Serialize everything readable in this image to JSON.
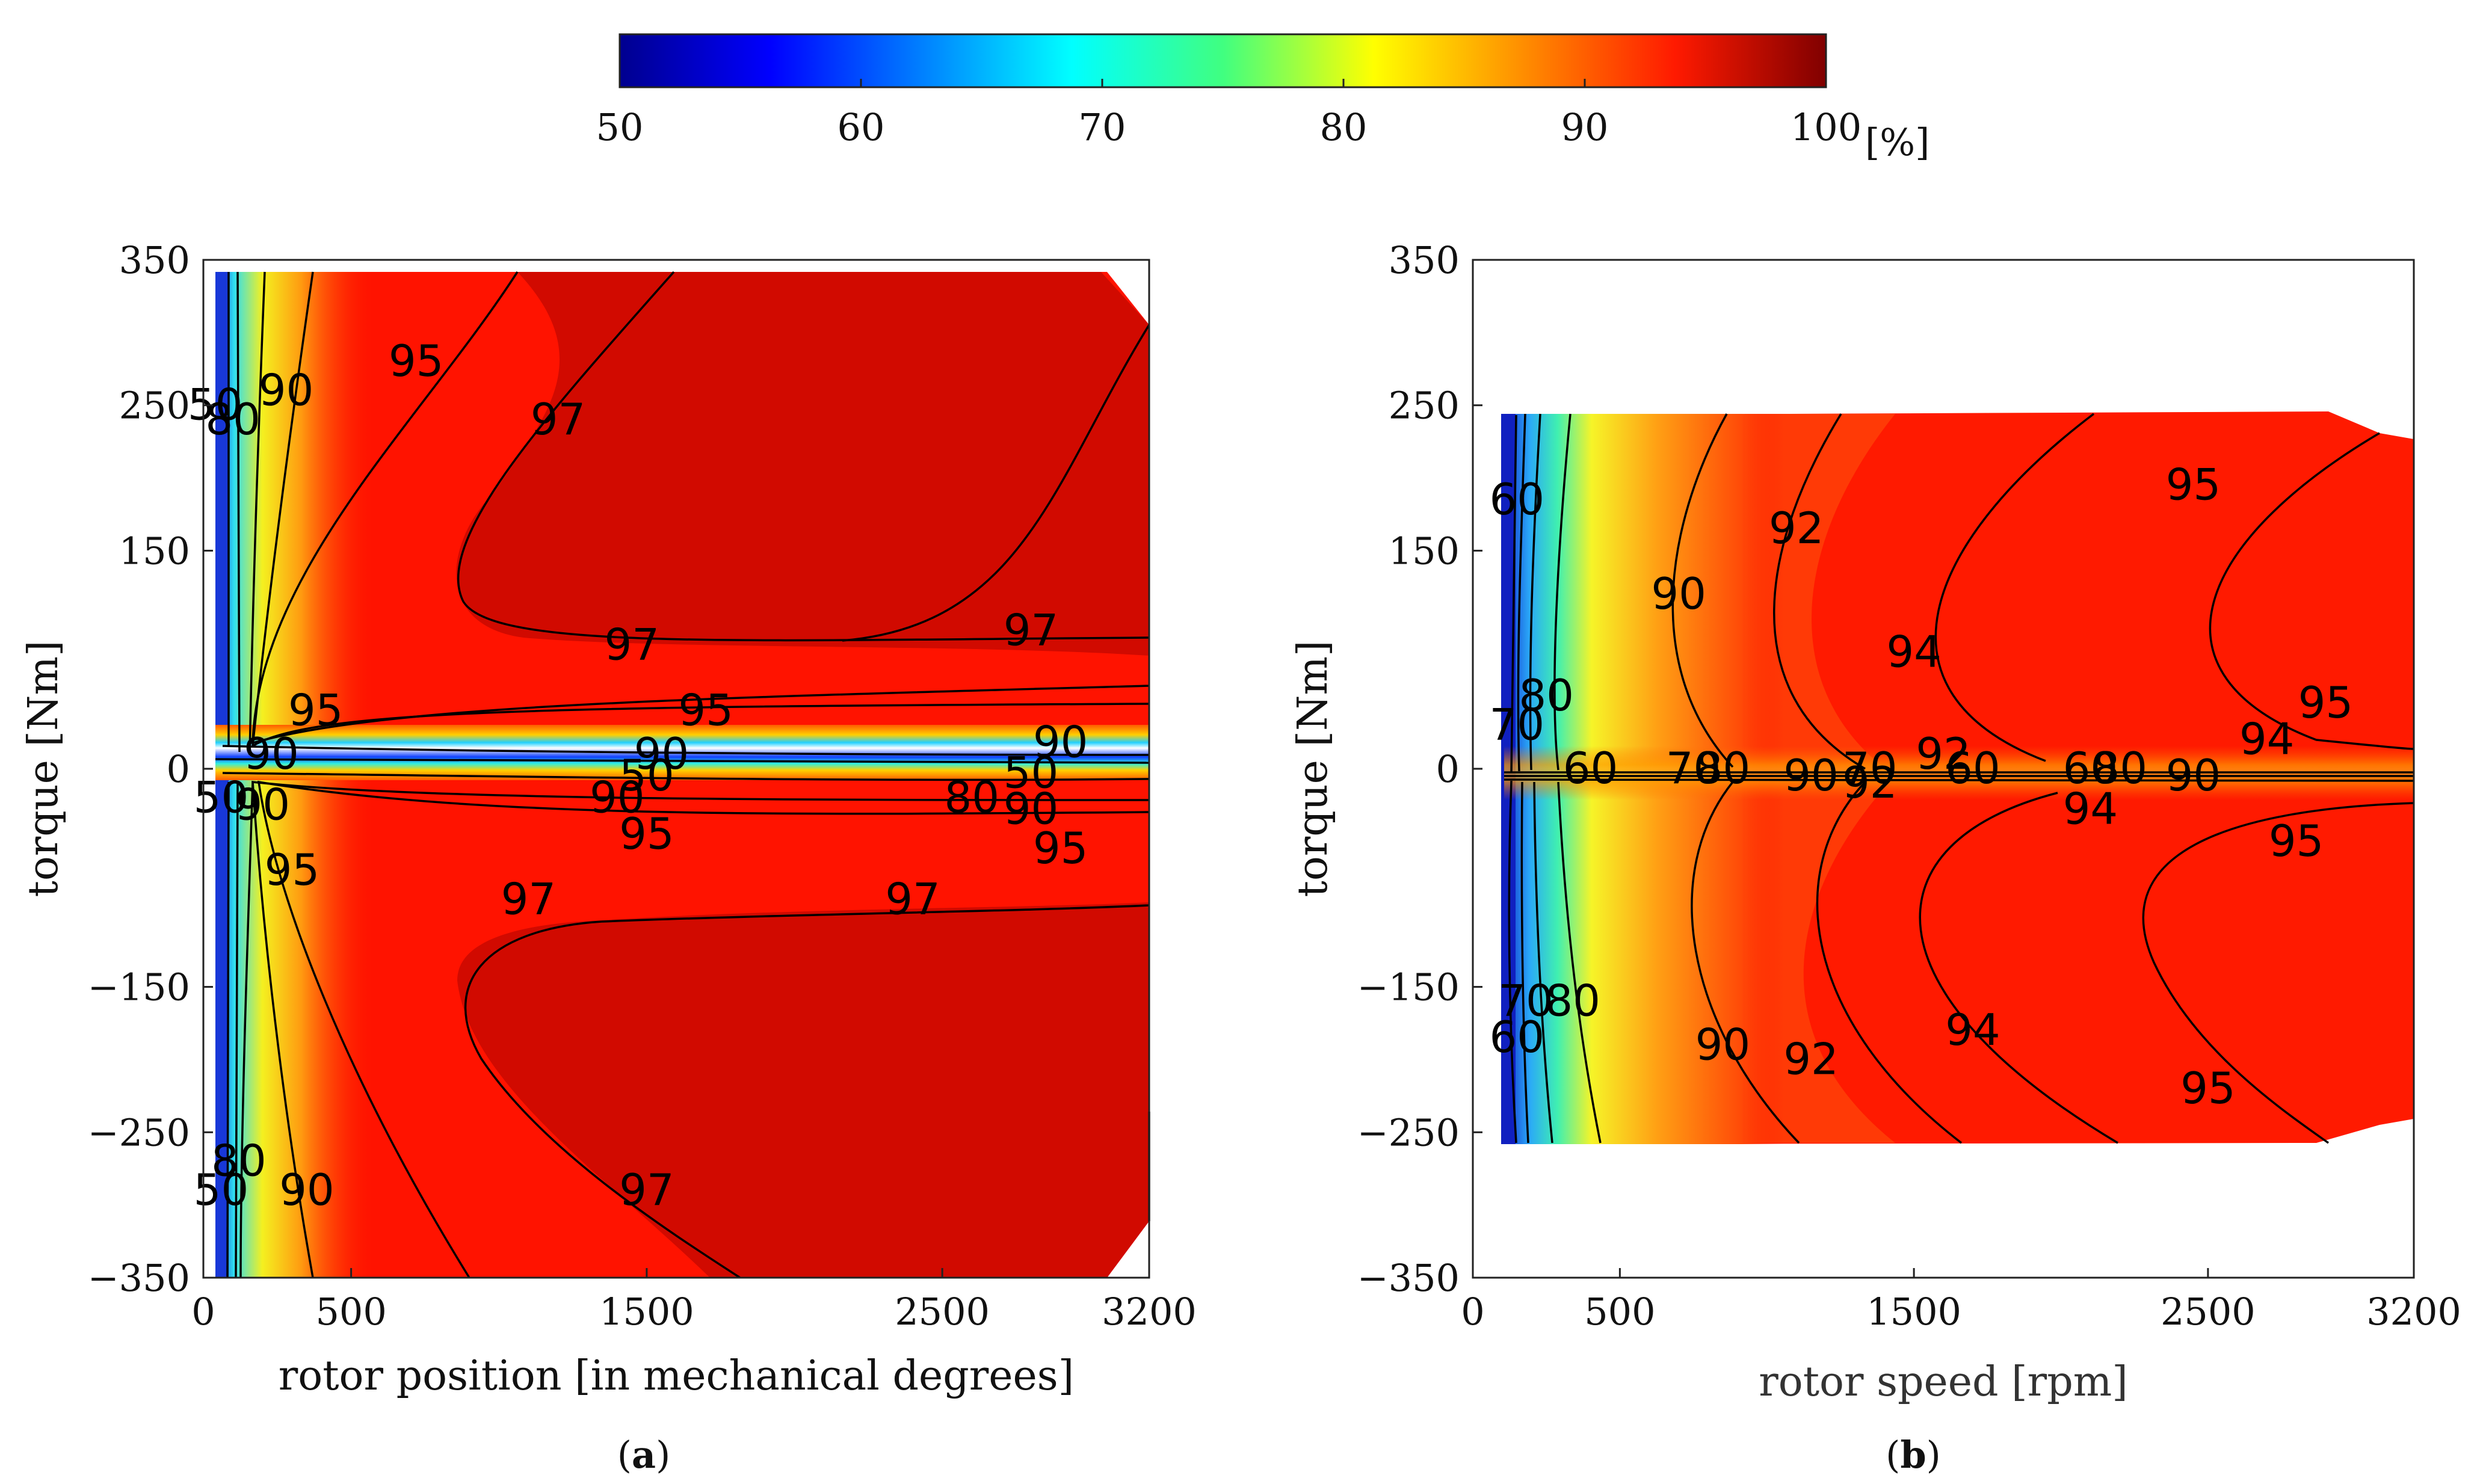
{
  "colorbar": {
    "ticks": [
      50,
      60,
      70,
      80,
      90,
      100
    ],
    "unit": "[%]",
    "range": [
      50,
      100
    ]
  },
  "chart_data": [
    {
      "type": "heatmap",
      "panel": "a",
      "caption_letter": "a",
      "xlabel": "rotor position [in mechanical degrees]",
      "ylabel": "torque [Nm]",
      "xlim": [
        0,
        3200
      ],
      "ylim": [
        -350,
        350
      ],
      "xticks": [
        0,
        500,
        1500,
        2500,
        3200
      ],
      "yticks": [
        350,
        250,
        150,
        0,
        -150,
        -250,
        -350
      ],
      "contour_levels": [
        50,
        80,
        90,
        95,
        97
      ],
      "contour_labels": [
        {
          "text": "50",
          "x": 40,
          "y": 250
        },
        {
          "text": "80",
          "x": 100,
          "y": 240
        },
        {
          "text": "90",
          "x": 280,
          "y": 260
        },
        {
          "text": "95",
          "x": 720,
          "y": 280
        },
        {
          "text": "97",
          "x": 1200,
          "y": 240
        },
        {
          "text": "97",
          "x": 1450,
          "y": 85
        },
        {
          "text": "97",
          "x": 2800,
          "y": 95
        },
        {
          "text": "95",
          "x": 380,
          "y": 40
        },
        {
          "text": "95",
          "x": 1700,
          "y": 40
        },
        {
          "text": "90",
          "x": 230,
          "y": 10
        },
        {
          "text": "90",
          "x": 1550,
          "y": 10
        },
        {
          "text": "90",
          "x": 2900,
          "y": 18
        },
        {
          "text": "50",
          "x": 60,
          "y": -20
        },
        {
          "text": "50",
          "x": 1500,
          "y": -5
        },
        {
          "text": "50",
          "x": 2800,
          "y": -3
        },
        {
          "text": "80",
          "x": 2600,
          "y": -20
        },
        {
          "text": "90",
          "x": 200,
          "y": -25
        },
        {
          "text": "90",
          "x": 1400,
          "y": -20
        },
        {
          "text": "90",
          "x": 2800,
          "y": -28
        },
        {
          "text": "95",
          "x": 1500,
          "y": -45
        },
        {
          "text": "95",
          "x": 2900,
          "y": -55
        },
        {
          "text": "95",
          "x": 300,
          "y": -70
        },
        {
          "text": "97",
          "x": 1100,
          "y": -90
        },
        {
          "text": "97",
          "x": 2400,
          "y": -90
        },
        {
          "text": "97",
          "x": 1500,
          "y": -290
        },
        {
          "text": "80",
          "x": 120,
          "y": -270
        },
        {
          "text": "90",
          "x": 350,
          "y": -290
        },
        {
          "text": "50",
          "x": 60,
          "y": -290
        }
      ]
    },
    {
      "type": "heatmap",
      "panel": "b",
      "caption_letter": "b",
      "xlabel": "rotor speed [rpm]",
      "ylabel": "torque [Nm]",
      "xlim": [
        0,
        3200
      ],
      "ylim": [
        -350,
        350
      ],
      "xticks": [
        0,
        500,
        1500,
        2500,
        3200
      ],
      "yticks": [
        350,
        250,
        150,
        0,
        -150,
        -250,
        -350
      ],
      "contour_levels": [
        60,
        70,
        80,
        90,
        92,
        94,
        95
      ],
      "contour_labels": [
        {
          "text": "60",
          "x": 150,
          "y": 185
        },
        {
          "text": "90",
          "x": 700,
          "y": 120
        },
        {
          "text": "92",
          "x": 1100,
          "y": 165
        },
        {
          "text": "94",
          "x": 1500,
          "y": 80
        },
        {
          "text": "95",
          "x": 2450,
          "y": 195
        },
        {
          "text": "95",
          "x": 2900,
          "y": 45
        },
        {
          "text": "94",
          "x": 2700,
          "y": 20
        },
        {
          "text": "80",
          "x": 250,
          "y": 50
        },
        {
          "text": "70",
          "x": 150,
          "y": 30
        },
        {
          "text": "60",
          "x": 400,
          "y": 0
        },
        {
          "text": "70",
          "x": 750,
          "y": 0
        },
        {
          "text": "80",
          "x": 850,
          "y": 0
        },
        {
          "text": "90",
          "x": 1150,
          "y": -5
        },
        {
          "text": "70",
          "x": 1350,
          "y": 0
        },
        {
          "text": "92",
          "x": 1600,
          "y": 10
        },
        {
          "text": "60",
          "x": 1700,
          "y": 0
        },
        {
          "text": "92",
          "x": 1350,
          "y": -10
        },
        {
          "text": "60",
          "x": 2100,
          "y": 0
        },
        {
          "text": "80",
          "x": 2200,
          "y": 0
        },
        {
          "text": "90",
          "x": 2450,
          "y": -5
        },
        {
          "text": "94",
          "x": 2100,
          "y": -28
        },
        {
          "text": "95",
          "x": 2800,
          "y": -50
        },
        {
          "text": "80",
          "x": 340,
          "y": -160
        },
        {
          "text": "70",
          "x": 180,
          "y": -160
        },
        {
          "text": "60",
          "x": 150,
          "y": -185
        },
        {
          "text": "90",
          "x": 850,
          "y": -190
        },
        {
          "text": "92",
          "x": 1150,
          "y": -200
        },
        {
          "text": "94",
          "x": 1700,
          "y": -180
        },
        {
          "text": "95",
          "x": 2500,
          "y": -220
        }
      ]
    }
  ]
}
